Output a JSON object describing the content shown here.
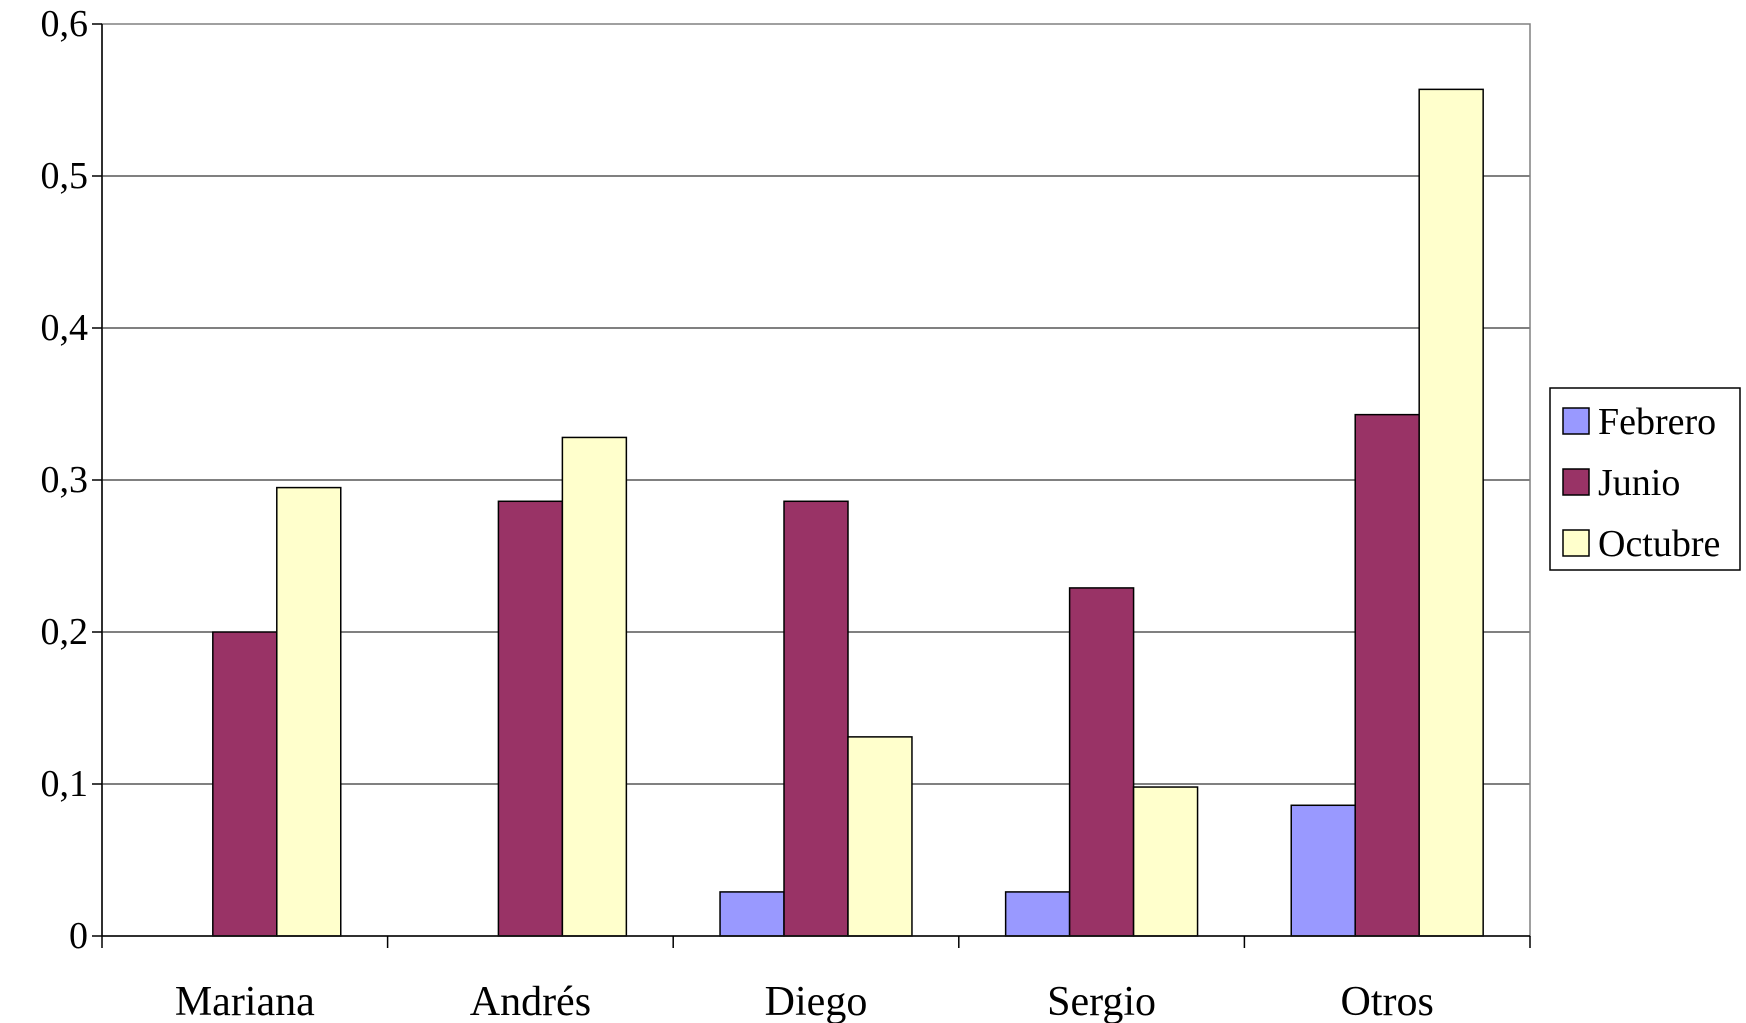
{
  "chart_data": {
    "type": "bar",
    "categories": [
      "Mariana",
      "Andrés",
      "Diego",
      "Sergio",
      "Otros"
    ],
    "series": [
      {
        "name": "Febrero",
        "color": "#9999ff",
        "values": [
          0,
          0,
          0.029,
          0.029,
          0.086
        ]
      },
      {
        "name": "Junio",
        "color": "#993366",
        "values": [
          0.2,
          0.286,
          0.286,
          0.229,
          0.343
        ]
      },
      {
        "name": "Octubre",
        "color": "#ffffcc",
        "values": [
          0.295,
          0.328,
          0.131,
          0.098,
          0.557
        ]
      }
    ],
    "yticks": [
      "0",
      "0,1",
      "0,2",
      "0,3",
      "0,4",
      "0,5",
      "0,6"
    ],
    "ylim": [
      0,
      0.6
    ],
    "grid": true,
    "legend_position": "right",
    "title": "",
    "xlabel": "",
    "ylabel": ""
  }
}
